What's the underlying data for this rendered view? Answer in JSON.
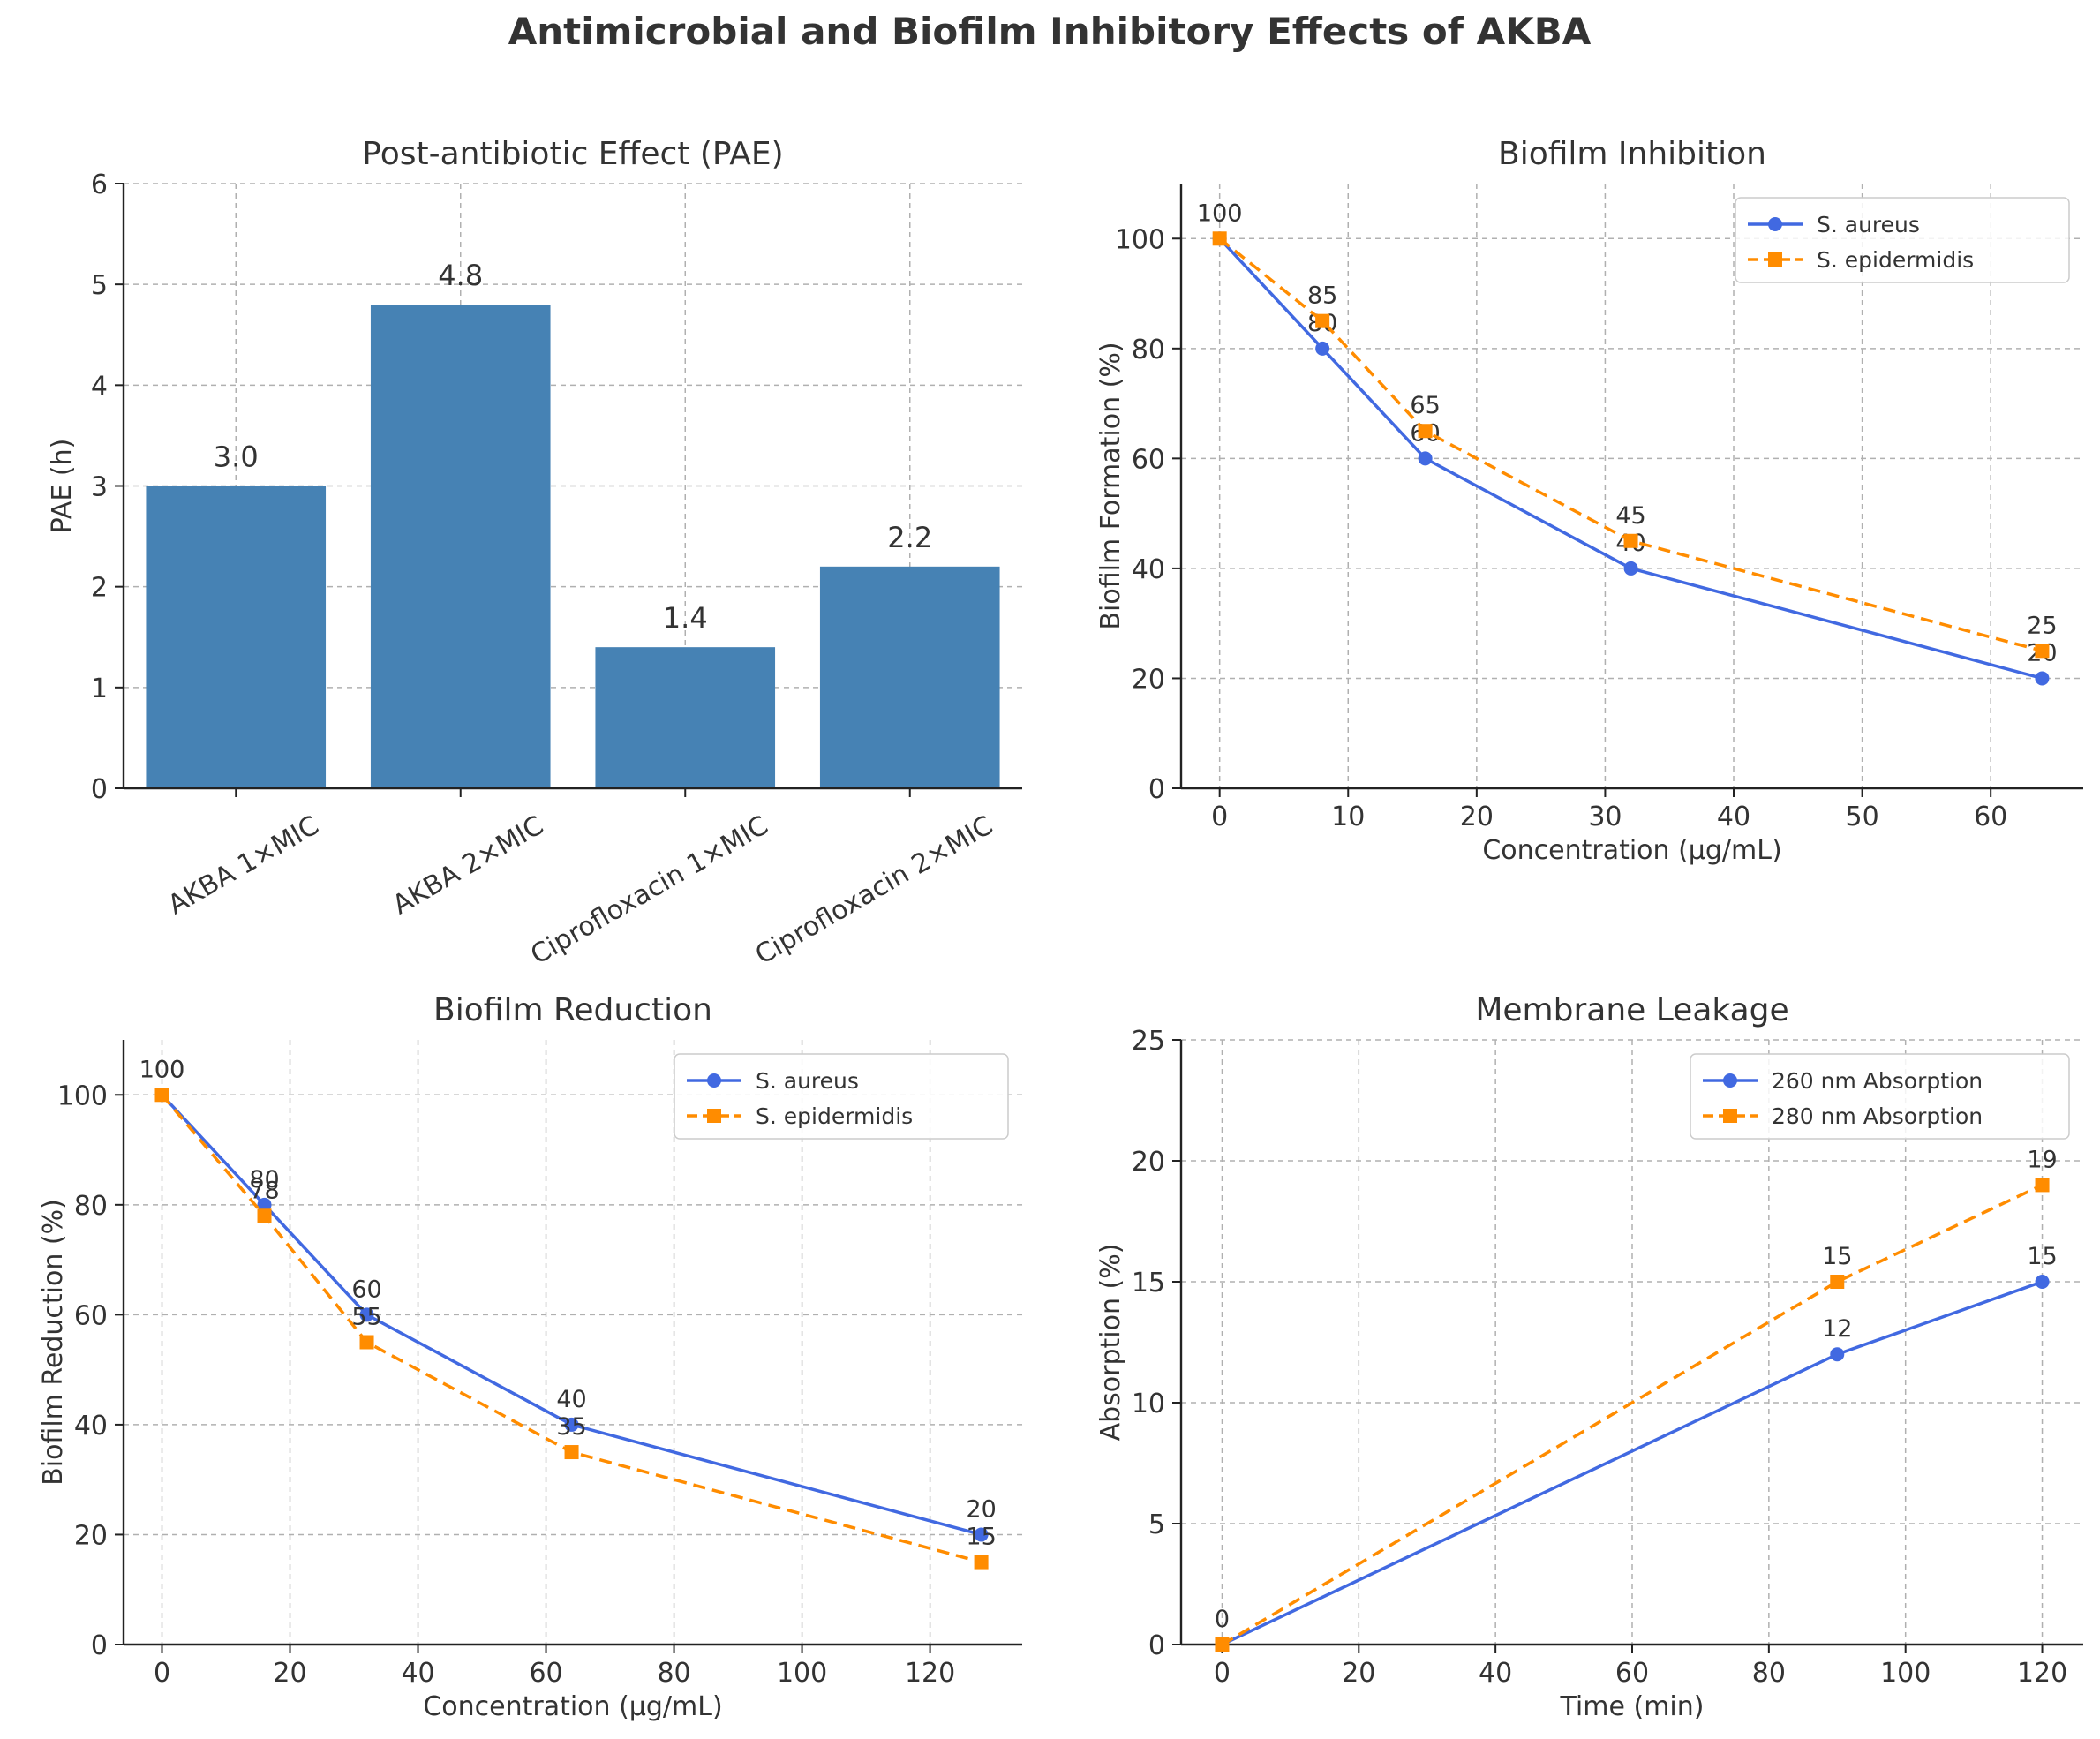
{
  "figure_title": "Antimicrobial and Biofilm Inhibitory Effects of AKBA",
  "colors": {
    "bar": "#4682b4",
    "blue": "#4169e1",
    "orange": "#ff8c00",
    "text": "#333333"
  },
  "chart_data": [
    {
      "type": "bar",
      "title": "Post-antibiotic Effect (PAE)",
      "xlabel": "",
      "ylabel": "PAE (h)",
      "categories": [
        "AKBA 1×MIC",
        "AKBA 2×MIC",
        "Ciprofloxacin 1×MIC",
        "Ciprofloxacin 2×MIC"
      ],
      "values": [
        3.0,
        4.8,
        1.4,
        2.2
      ],
      "value_labels": [
        "3.0",
        "4.8",
        "1.4",
        "2.2"
      ],
      "ylim": [
        0,
        6
      ],
      "yticks": [
        0,
        1,
        2,
        3,
        4,
        5,
        6
      ],
      "grid": true
    },
    {
      "type": "line",
      "title": "Biofilm Inhibition",
      "xlabel": "Concentration (µg/mL)",
      "ylabel": "Biofilm Formation (%)",
      "xlim": [
        -3,
        67.2
      ],
      "ylim": [
        0,
        110
      ],
      "xticks": [
        0,
        10,
        20,
        30,
        40,
        50,
        60
      ],
      "yticks": [
        0,
        20,
        40,
        60,
        80,
        100
      ],
      "legend_position": "top-right",
      "series": [
        {
          "name": "S. aureus",
          "x": [
            0,
            8,
            16,
            32,
            64
          ],
          "y": [
            100,
            80,
            60,
            40,
            20
          ],
          "labels": [
            "100",
            "80",
            "60",
            "40",
            "20"
          ]
        },
        {
          "name": "S. epidermidis",
          "x": [
            0,
            8,
            16,
            32,
            64
          ],
          "y": [
            100,
            85,
            65,
            45,
            25
          ],
          "labels": [
            "100",
            "85",
            "65",
            "45",
            "25"
          ]
        }
      ]
    },
    {
      "type": "line",
      "title": "Biofilm Reduction",
      "xlabel": "Concentration (µg/mL)",
      "ylabel": "Biofilm Reduction (%)",
      "xlim": [
        -6,
        134.4
      ],
      "ylim": [
        0,
        110
      ],
      "xticks": [
        0,
        20,
        40,
        60,
        80,
        100,
        120
      ],
      "yticks": [
        0,
        20,
        40,
        60,
        80,
        100
      ],
      "legend_position": "top-right",
      "series": [
        {
          "name": "S. aureus",
          "x": [
            0,
            16,
            32,
            64,
            128
          ],
          "y": [
            100,
            80,
            60,
            40,
            20
          ],
          "labels": [
            "100",
            "80",
            "60",
            "40",
            "20"
          ]
        },
        {
          "name": "S. epidermidis",
          "x": [
            0,
            16,
            32,
            64,
            128
          ],
          "y": [
            100,
            78,
            55,
            35,
            15
          ],
          "labels": [
            "100",
            "78",
            "55",
            "35",
            "15"
          ]
        }
      ]
    },
    {
      "type": "line",
      "title": "Membrane Leakage",
      "xlabel": "Time (min)",
      "ylabel": "Absorption (%)",
      "xlim": [
        -6,
        126
      ],
      "ylim": [
        0,
        25
      ],
      "xticks": [
        0,
        20,
        40,
        60,
        80,
        100,
        120
      ],
      "yticks": [
        0,
        5,
        10,
        15,
        20,
        25
      ],
      "legend_position": "top-right",
      "series": [
        {
          "name": "260 nm Absorption",
          "x": [
            0,
            90,
            120
          ],
          "y": [
            0,
            12,
            15
          ],
          "labels": [
            "",
            "12",
            "15"
          ]
        },
        {
          "name": "280 nm Absorption",
          "x": [
            0,
            90,
            120
          ],
          "y": [
            0,
            15,
            19
          ],
          "labels": [
            "0",
            "15",
            "19"
          ]
        }
      ]
    }
  ]
}
